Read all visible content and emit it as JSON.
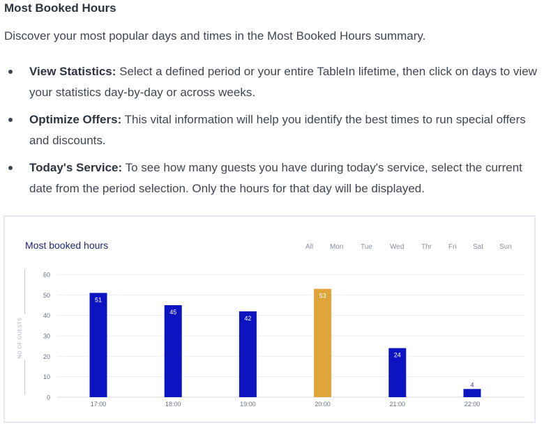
{
  "heading": "Most Booked Hours",
  "intro": "Discover your most popular days and times in the Most Booked Hours summary.",
  "bullets": [
    {
      "label": "View Statistics:",
      "text": " Select a defined period or your entire TableIn lifetime, then click on days to view your statistics day-by-day or across weeks."
    },
    {
      "label": "Optimize Offers:",
      "text": " This vital information will help you identify the best times to run special offers and discounts."
    },
    {
      "label": "Today's Service:",
      "text": " To see how many guests you have during today's service, select the current date from the period selection. Only the hours for that day will be displayed."
    }
  ],
  "widget": {
    "title": "Most booked hours",
    "filters": [
      "All",
      "Mon",
      "Tue",
      "Wed",
      "Thr",
      "Fri",
      "Sat",
      "Sun"
    ],
    "y_axis_label": "NO OF GUESTS"
  },
  "colors": {
    "bar_default": "#0b14c0",
    "bar_highlight": "#e0a53a"
  },
  "chart_data": {
    "type": "bar",
    "title": "Most booked hours",
    "ylabel": "NO OF GUESTS",
    "categories": [
      "17:00",
      "18:00",
      "19:00",
      "20:00",
      "21:00",
      "22:00"
    ],
    "values": [
      51,
      45,
      42,
      53,
      24,
      4
    ],
    "highlight_index": 3,
    "ylim": [
      0,
      60
    ],
    "yticks": [
      0,
      10,
      20,
      30,
      40,
      50,
      60
    ],
    "grid": true
  }
}
